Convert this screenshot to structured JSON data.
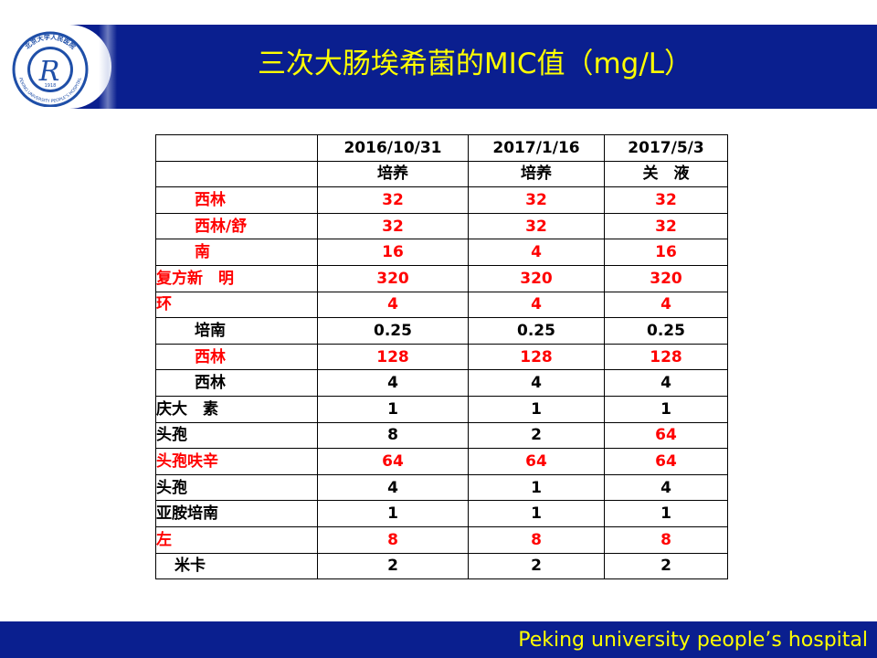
{
  "header": {
    "title": "三次大肠埃希菌的MIC值（mg/L）",
    "logo": {
      "icon": "hospital-seal-logo",
      "top_text": "北京大学人民医院",
      "bottom_text": "PEKING UNIVERSITY PEOPLE'S HOSPITAL",
      "year": "1918",
      "monogram": "R"
    }
  },
  "table": {
    "header_rows": [
      [
        "",
        "2016/10/31",
        "2017/1/16",
        "2017/5/3"
      ],
      [
        "",
        "培养",
        "培养",
        "关　液"
      ]
    ],
    "rows": [
      {
        "name": "西林",
        "values": [
          "32",
          "32",
          "32"
        ]
      },
      {
        "name": "西林/舒",
        "values": [
          "32",
          "32",
          "32"
        ]
      },
      {
        "name": "南",
        "values": [
          "16",
          "4",
          "16"
        ]
      },
      {
        "name": "复方新　明",
        "values": [
          "320",
          "320",
          "320"
        ]
      },
      {
        "name": "环",
        "values": [
          "4",
          "4",
          "4"
        ]
      },
      {
        "name": "培南",
        "values": [
          "0.25",
          "0.25",
          "0.25"
        ]
      },
      {
        "name": "西林",
        "values": [
          "128",
          "128",
          "128"
        ]
      },
      {
        "name": "西林",
        "values": [
          "4",
          "4",
          "4"
        ]
      },
      {
        "name": "庆大　素",
        "values": [
          "1",
          "1",
          "1"
        ]
      },
      {
        "name": "头孢",
        "values": [
          "8",
          "2",
          "64"
        ]
      },
      {
        "name": "头孢呋辛",
        "values": [
          "64",
          "64",
          "64"
        ]
      },
      {
        "name": "头孢",
        "values": [
          "4",
          "1",
          "4"
        ]
      },
      {
        "name": "亚胺培南",
        "values": [
          "1",
          "1",
          "1"
        ]
      },
      {
        "name": "左",
        "values": [
          "8",
          "8",
          "8"
        ]
      },
      {
        "name": "米卡",
        "values": [
          "2",
          "2",
          "2"
        ]
      }
    ]
  },
  "footer": {
    "text": "Peking university people’s hospital"
  },
  "colors": {
    "brand_blue": "#0a1f8f",
    "title_yellow": "#ffff00",
    "resistant_red": "#ff0000",
    "normal_black": "#000000"
  }
}
